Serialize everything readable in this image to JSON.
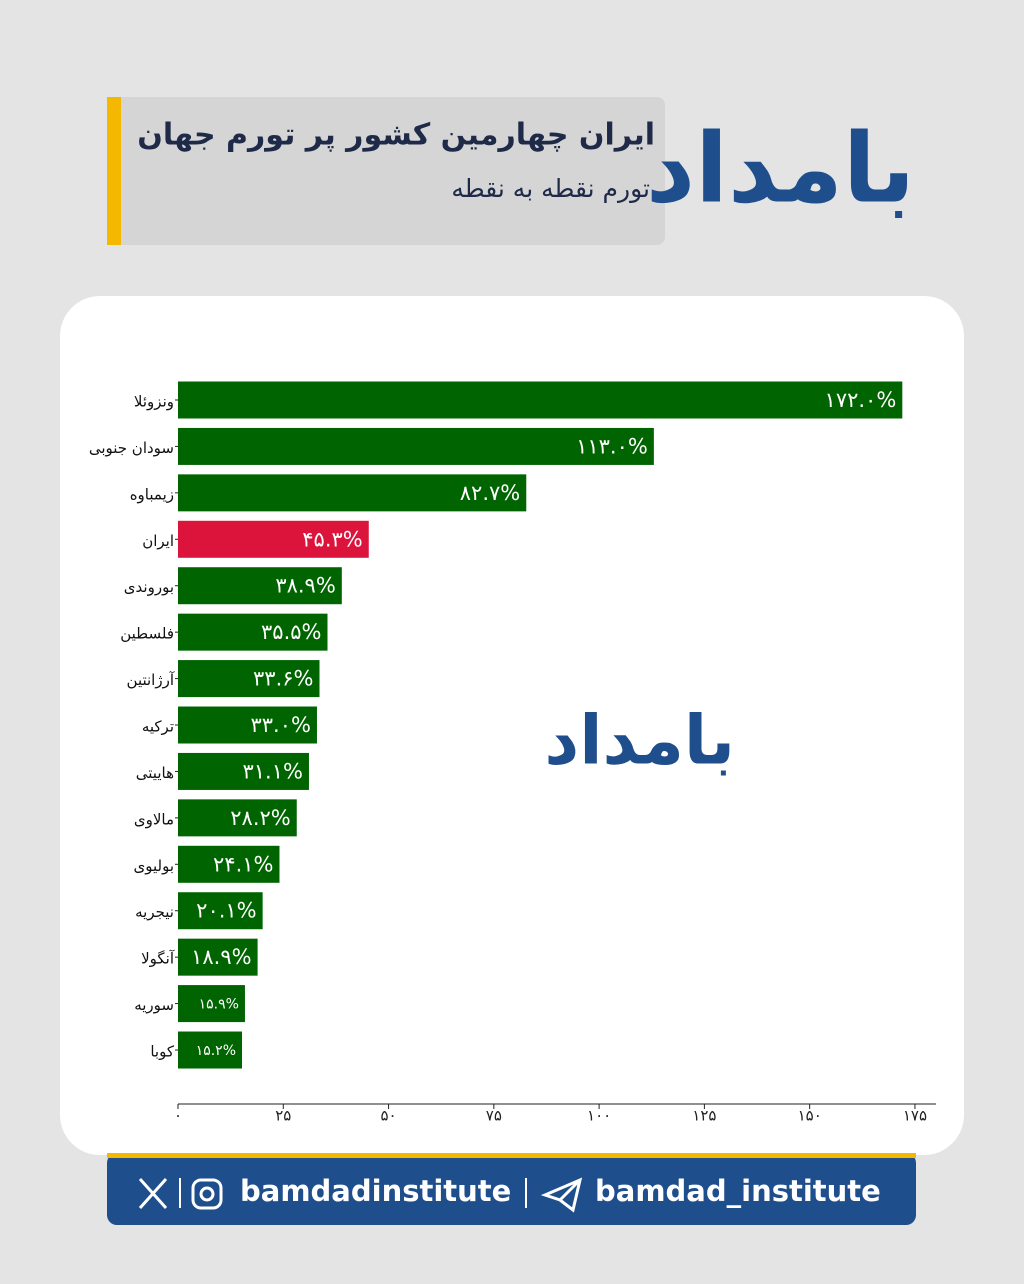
{
  "chart_data": {
    "type": "bar",
    "orientation": "horizontal",
    "title": "ایران چهارمین کشور پر تورم جهان",
    "subtitle": "تورم نقطه به نقطه",
    "logo": "بامداد",
    "categories": [
      "ونزوئلا",
      "سودان جنوبی",
      "زیمباوه",
      "ایران",
      "بوروندی",
      "فلسطین",
      "آرژانتین",
      "ترکیه",
      "هاییتی",
      "مالاوی",
      "بولیوی",
      "نیجریه",
      "آنگولا",
      "سوریه",
      "کوبا"
    ],
    "values": [
      172.0,
      113.0,
      82.7,
      45.3,
      38.9,
      35.5,
      33.6,
      33.0,
      31.1,
      28.2,
      24.1,
      20.1,
      18.9,
      15.9,
      15.2
    ],
    "value_labels": [
      "۱۷۲.۰%",
      "۱۱۳.۰%",
      "۸۲.۷%",
      "۴۵.۳%",
      "۳۸.۹%",
      "۳۵.۵%",
      "۳۳.۶%",
      "۳۳.۰%",
      "۳۱.۱%",
      "۲۸.۲%",
      "۲۴.۱%",
      "۲۰.۱%",
      "۱۸.۹%",
      "۱۵.۹%",
      "۱۵.۲%"
    ],
    "colors": [
      "#006400",
      "#006400",
      "#006400",
      "#dc143c",
      "#006400",
      "#006400",
      "#006400",
      "#006400",
      "#006400",
      "#006400",
      "#006400",
      "#006400",
      "#006400",
      "#006400",
      "#006400"
    ],
    "xlim": [
      0,
      180
    ],
    "xticks": [
      {
        "value": 0,
        "label": "۰"
      },
      {
        "value": 25,
        "label": "۲۵"
      },
      {
        "value": 50,
        "label": "۵۰"
      },
      {
        "value": 75,
        "label": "۷۵"
      },
      {
        "value": 100,
        "label": "۱۰۰"
      },
      {
        "value": 125,
        "label": "۱۲۵"
      },
      {
        "value": 150,
        "label": "۱۵۰"
      },
      {
        "value": 175,
        "label": "۱۷۵"
      }
    ],
    "grid": false
  },
  "footer": {
    "handle_1": "bamdadinstitute",
    "handle_2": "bamdad_institute"
  }
}
